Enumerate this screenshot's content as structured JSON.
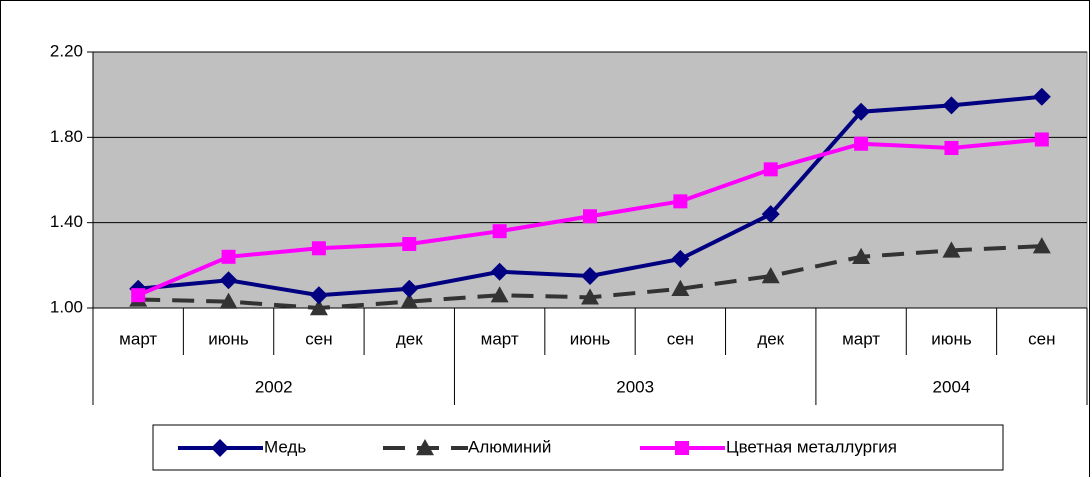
{
  "chart_data": {
    "type": "line",
    "categories": [
      "март",
      "июнь",
      "сен",
      "дек",
      "март",
      "июнь",
      "сен",
      "дек",
      "март",
      "июнь",
      "сен"
    ],
    "year_groups": [
      {
        "label": "2002",
        "span": 4
      },
      {
        "label": "2003",
        "span": 4
      },
      {
        "label": "2004",
        "span": 3
      }
    ],
    "series": [
      {
        "name": "Медь",
        "color": "#000080",
        "marker": "diamond",
        "dash": false,
        "values": [
          1.09,
          1.13,
          1.06,
          1.09,
          1.17,
          1.15,
          1.23,
          1.44,
          1.92,
          1.95,
          1.99
        ]
      },
      {
        "name": "Алюминий",
        "color": "#333333",
        "marker": "triangle",
        "dash": true,
        "values": [
          1.04,
          1.03,
          1.0,
          1.03,
          1.06,
          1.05,
          1.09,
          1.15,
          1.24,
          1.27,
          1.29
        ]
      },
      {
        "name": "Цветная металлургия",
        "color": "#ff00ff",
        "marker": "square",
        "dash": false,
        "values": [
          1.06,
          1.24,
          1.28,
          1.3,
          1.36,
          1.43,
          1.5,
          1.65,
          1.77,
          1.75,
          1.79
        ]
      }
    ],
    "ylim": [
      1.0,
      2.2
    ],
    "yticks": [
      {
        "value": 1.0,
        "label": "1.00"
      },
      {
        "value": 1.4,
        "label": "1.40"
      },
      {
        "value": 1.8,
        "label": "1.80"
      },
      {
        "value": 2.2,
        "label": "2.20"
      }
    ],
    "grid": true,
    "plot_background": "#c0c0c0",
    "legend": "bottom"
  }
}
